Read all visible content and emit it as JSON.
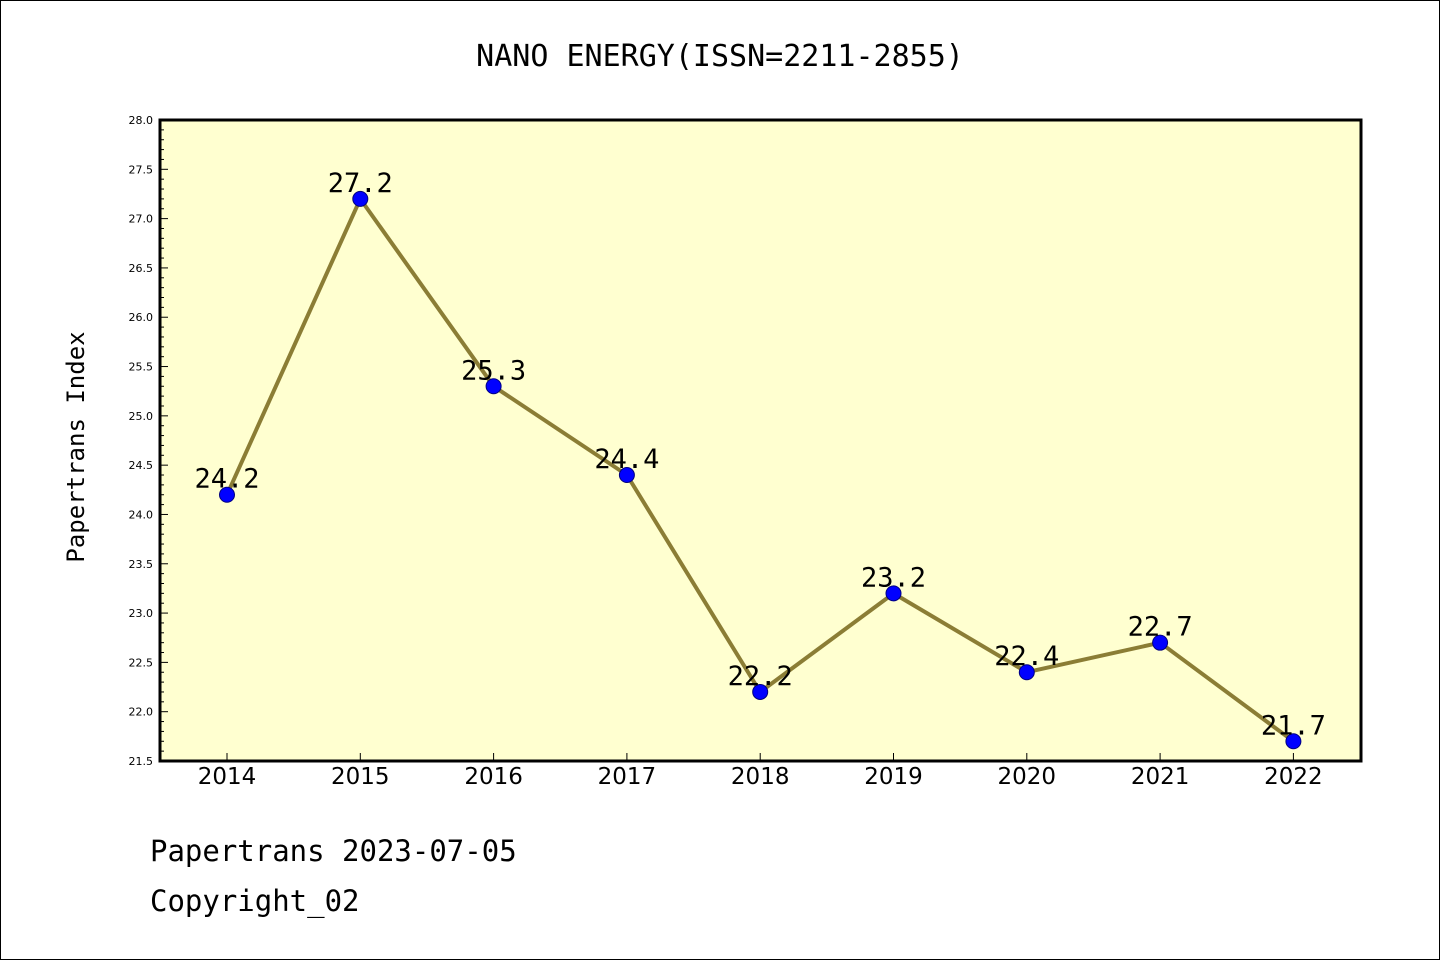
{
  "colors": {
    "plot_background": "#ffffd0",
    "line": "#8b7d35",
    "marker_fill": "#0000ff",
    "marker_edge": "#000080",
    "axis": "#000000"
  },
  "chart_data": {
    "type": "line",
    "title": "NANO ENERGY(ISSN=2211-2855)",
    "xlabel": "",
    "ylabel": "Papertrans Index",
    "categories": [
      "2014",
      "2015",
      "2016",
      "2017",
      "2018",
      "2019",
      "2020",
      "2021",
      "2022"
    ],
    "series": [
      {
        "values": [
          24.2,
          27.2,
          25.3,
          24.4,
          22.2,
          23.2,
          22.4,
          22.7,
          21.7
        ],
        "data_labels": [
          "24.2",
          "27.2",
          "25.3",
          "24.4",
          "22.2",
          "23.2",
          "22.4",
          "22.7",
          "21.7"
        ]
      }
    ],
    "ylim": [
      21.5,
      28.0
    ],
    "yticks": [
      "21.5",
      "22.0",
      "22.5",
      "23.0",
      "23.5",
      "24.0",
      "24.5",
      "25.0",
      "25.5",
      "26.0",
      "26.5",
      "27.0",
      "27.5",
      "28.0"
    ],
    "grid": false,
    "legend": "none"
  },
  "footer": {
    "line1": "Papertrans 2023-07-05",
    "line2": "Copyright_02"
  }
}
